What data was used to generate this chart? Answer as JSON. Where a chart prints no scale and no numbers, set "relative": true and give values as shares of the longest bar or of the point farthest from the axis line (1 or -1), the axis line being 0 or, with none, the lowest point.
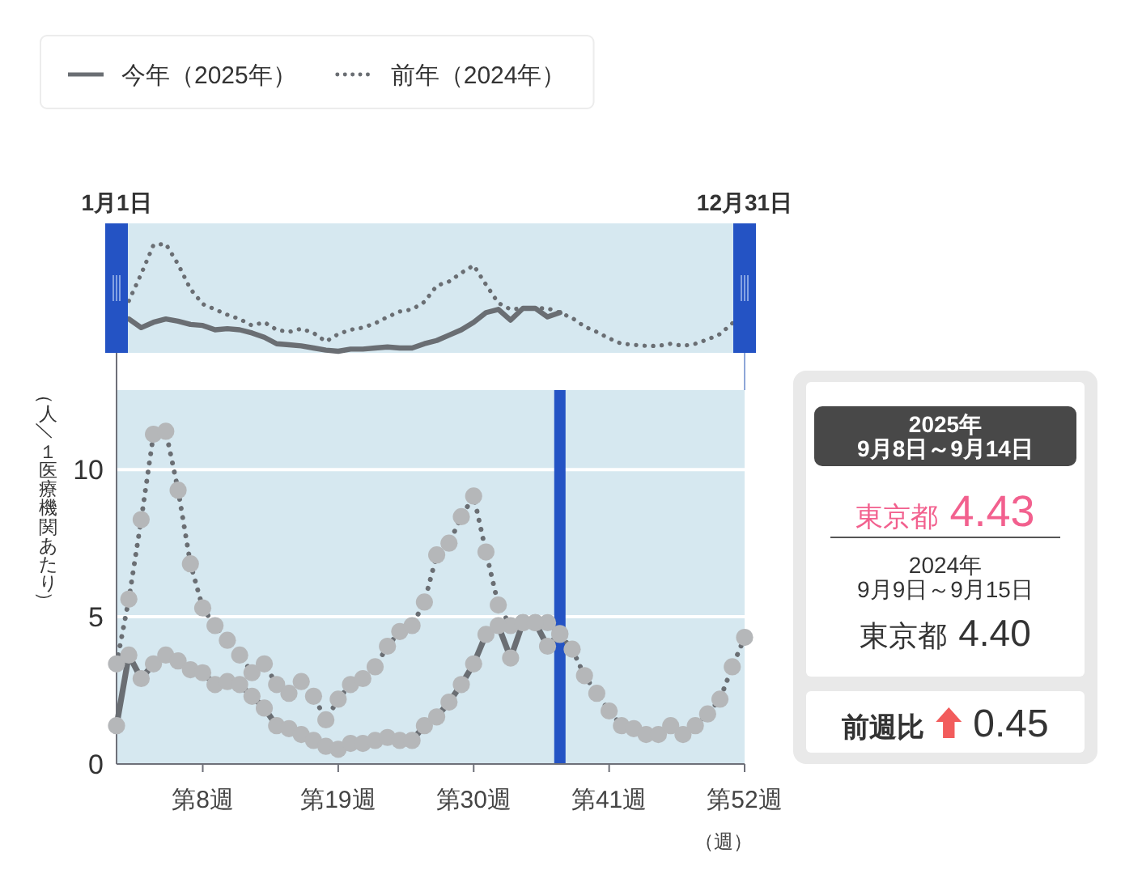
{
  "chart_data": [
    {
      "type": "line",
      "relative": true,
      "categories": [
        "1月1日",
        null,
        null,
        null,
        null,
        null,
        null,
        null,
        null,
        null,
        null,
        null,
        null,
        null,
        null,
        null,
        null,
        null,
        null,
        null,
        null,
        null,
        null,
        null,
        null,
        null,
        null,
        null,
        null,
        null,
        null,
        null,
        null,
        null,
        null,
        null,
        null,
        null,
        null,
        null,
        null,
        null,
        null,
        null,
        null,
        null,
        null,
        null,
        null,
        null,
        null,
        "12月31日"
      ],
      "series": [
        {
          "color": "#6a6e73",
          "line_style": "solid",
          "values": [
            null,
            0.3,
            0.22,
            0.27,
            0.3,
            0.28,
            0.25,
            0.24,
            0.2,
            0.21,
            0.2,
            0.17,
            0.13,
            0.07,
            0.06,
            0.05,
            0.03,
            0.01,
            0,
            0.02,
            0.02,
            0.03,
            0.04,
            0.03,
            0.03,
            0.07,
            0.1,
            0.15,
            0.2,
            0.27,
            0.36,
            0.39,
            0.29,
            0.4,
            0.4,
            0.32,
            0.36,
            null,
            null,
            null,
            null,
            null,
            null,
            null,
            null,
            null,
            null,
            null,
            null,
            null,
            null,
            null
          ]
        },
        {
          "color": "#6a6e73",
          "line_style": "dotted",
          "values": [
            null,
            0.47,
            0.72,
            0.99,
            1,
            0.81,
            0.58,
            0.44,
            0.39,
            0.34,
            0.3,
            0.24,
            0.27,
            0.2,
            0.18,
            0.21,
            0.17,
            0.09,
            0.16,
            0.2,
            0.22,
            0.26,
            0.32,
            0.37,
            0.39,
            0.46,
            0.61,
            0.65,
            0.73,
            0.8,
            0.62,
            0.45,
            0.39,
            0.4,
            0.4,
            0.4,
            0.36,
            0.31,
            0.23,
            0.18,
            0.12,
            0.07,
            0.06,
            0.05,
            0.05,
            0.07,
            0.05,
            0.07,
            0.11,
            0.16,
            0.26,
            null
          ]
        }
      ]
    },
    {
      "type": "line",
      "xlabel": "（週）",
      "ylabel": "（人／１医療機関あたり）",
      "categories": [
        null,
        null,
        null,
        null,
        null,
        null,
        null,
        "第8週",
        null,
        null,
        null,
        null,
        null,
        null,
        null,
        null,
        null,
        null,
        "第19週",
        null,
        null,
        null,
        null,
        null,
        null,
        null,
        null,
        null,
        null,
        "第30週",
        null,
        null,
        null,
        null,
        null,
        null,
        null,
        null,
        null,
        null,
        "第41週",
        null,
        null,
        null,
        null,
        null,
        null,
        null,
        null,
        null,
        null,
        "第52週"
      ],
      "ylim": [
        0,
        12.7
      ],
      "yticks": [
        0,
        5,
        10
      ],
      "grid": "y",
      "legend": "top left",
      "marker": "circle",
      "series": [
        {
          "name": "今年（2025年）",
          "color": "#6a6e73",
          "line_style": "solid",
          "values": [
            1.3,
            3.7,
            2.9,
            3.4,
            3.7,
            3.5,
            3.2,
            3.1,
            2.7,
            2.8,
            2.7,
            2.3,
            1.9,
            1.3,
            1.2,
            1.0,
            0.8,
            0.6,
            0.5,
            0.7,
            0.7,
            0.8,
            0.9,
            0.8,
            0.8,
            1.3,
            1.6,
            2.1,
            2.7,
            3.4,
            4.4,
            4.7,
            3.6,
            4.8,
            4.8,
            4.0,
            4.43,
            null,
            null,
            null,
            null,
            null,
            null,
            null,
            null,
            null,
            null,
            null,
            null,
            null,
            null,
            null
          ]
        },
        {
          "name": "前年（2024年）",
          "color": "#6a6e73",
          "line_style": "dotted",
          "values": [
            3.4,
            5.6,
            8.3,
            11.2,
            11.3,
            9.3,
            6.8,
            5.3,
            4.7,
            4.2,
            3.7,
            3.1,
            3.4,
            2.7,
            2.4,
            2.8,
            2.3,
            1.5,
            2.2,
            2.7,
            2.9,
            3.3,
            4.0,
            4.5,
            4.7,
            5.5,
            7.1,
            7.5,
            8.4,
            9.1,
            7.2,
            5.4,
            4.7,
            4.8,
            4.8,
            4.8,
            4.4,
            3.9,
            3.0,
            2.4,
            1.8,
            1.3,
            1.2,
            1.0,
            1.0,
            1.3,
            1.0,
            1.3,
            1.7,
            2.2,
            3.3,
            4.3
          ]
        }
      ]
    },
    {
      "type": "other",
      "title": "2025年",
      "subtitle": "9月8日～9月14日",
      "annotations": [
        "東京都",
        "4.43",
        "2024年",
        "9月9日～9月15日",
        "東京都",
        "4.40",
        "前週比",
        "0.45"
      ]
    }
  ]
}
